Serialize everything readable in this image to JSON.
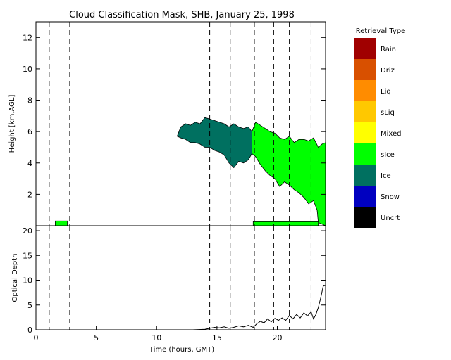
{
  "chart_data": [
    {
      "type": "heatmap",
      "title": "Cloud Classification Mask, SHB, January 25, 1998",
      "ylabel": "Height [km,AGL]",
      "xlim": [
        0,
        24
      ],
      "ylim": [
        0,
        13
      ],
      "yticks": [
        2,
        4,
        6,
        8,
        10,
        12
      ],
      "event_lines": [
        1.1,
        2.8,
        14.4,
        16.1,
        18.1,
        19.7,
        21.0,
        22.8
      ],
      "legend": {
        "title": "Retrieval Type",
        "placement": "right",
        "entries": [
          {
            "label": "Rain",
            "color": "#a00000"
          },
          {
            "label": "Driz",
            "color": "#d85000"
          },
          {
            "label": "Liq",
            "color": "#ff8c00"
          },
          {
            "label": "sLiq",
            "color": "#ffc800"
          },
          {
            "label": "Mixed",
            "color": "#ffff00"
          },
          {
            "label": "sIce",
            "color": "#00ff00"
          },
          {
            "label": "Ice",
            "color": "#007060"
          },
          {
            "label": "Snow",
            "color": "#0000c0"
          },
          {
            "label": "Uncrt",
            "color": "#000000"
          }
        ]
      },
      "layers": [
        {
          "class": "Ice",
          "color": "#007060",
          "top": [
            [
              11.7,
              5.7
            ],
            [
              12.0,
              6.3
            ],
            [
              12.4,
              6.5
            ],
            [
              12.8,
              6.4
            ],
            [
              13.2,
              6.6
            ],
            [
              13.6,
              6.5
            ],
            [
              14.0,
              6.9
            ],
            [
              14.4,
              6.8
            ],
            [
              14.8,
              6.7
            ],
            [
              15.2,
              6.6
            ],
            [
              15.6,
              6.5
            ],
            [
              16.0,
              6.3
            ],
            [
              16.4,
              6.5
            ],
            [
              16.8,
              6.3
            ],
            [
              17.2,
              6.2
            ],
            [
              17.6,
              6.3
            ],
            [
              17.9,
              6.0
            ]
          ],
          "bottom": [
            [
              17.9,
              4.6
            ],
            [
              17.6,
              4.2
            ],
            [
              17.2,
              4.0
            ],
            [
              16.8,
              4.1
            ],
            [
              16.4,
              3.7
            ],
            [
              16.0,
              4.0
            ],
            [
              15.6,
              4.5
            ],
            [
              15.2,
              4.7
            ],
            [
              14.8,
              4.8
            ],
            [
              14.4,
              5.0
            ],
            [
              14.0,
              5.0
            ],
            [
              13.6,
              5.2
            ],
            [
              13.2,
              5.3
            ],
            [
              12.8,
              5.3
            ],
            [
              12.4,
              5.5
            ],
            [
              12.0,
              5.6
            ],
            [
              11.7,
              5.7
            ]
          ]
        },
        {
          "class": "sIce",
          "color": "#00ff00",
          "top": [
            [
              17.9,
              6.0
            ],
            [
              18.2,
              6.6
            ],
            [
              18.6,
              6.4
            ],
            [
              19.0,
              6.2
            ],
            [
              19.4,
              6.0
            ],
            [
              19.8,
              5.9
            ],
            [
              20.2,
              5.6
            ],
            [
              20.6,
              5.5
            ],
            [
              21.0,
              5.7
            ],
            [
              21.4,
              5.3
            ],
            [
              21.8,
              5.5
            ],
            [
              22.2,
              5.5
            ],
            [
              22.6,
              5.4
            ],
            [
              23.0,
              5.6
            ],
            [
              23.4,
              5.0
            ],
            [
              23.7,
              5.2
            ],
            [
              24.0,
              5.3
            ]
          ],
          "bottom": [
            [
              24.0,
              0.0
            ],
            [
              23.4,
              0.2
            ],
            [
              23.3,
              1.0
            ],
            [
              23.0,
              1.6
            ],
            [
              22.6,
              1.4
            ],
            [
              22.2,
              1.8
            ],
            [
              21.8,
              2.1
            ],
            [
              21.4,
              2.3
            ],
            [
              21.0,
              2.6
            ],
            [
              20.6,
              2.8
            ],
            [
              20.2,
              2.5
            ],
            [
              19.8,
              3.0
            ],
            [
              19.4,
              3.2
            ],
            [
              19.0,
              3.5
            ],
            [
              18.6,
              3.9
            ],
            [
              18.2,
              4.4
            ],
            [
              17.9,
              4.6
            ]
          ]
        },
        {
          "class": "sIce",
          "color": "#00ff00",
          "top": [
            [
              1.6,
              0.3
            ],
            [
              2.6,
              0.3
            ]
          ],
          "bottom": [
            [
              2.6,
              0.0
            ],
            [
              1.6,
              0.0
            ]
          ]
        },
        {
          "class": "sIce",
          "color": "#00ff00",
          "top": [
            [
              18.0,
              0.25
            ],
            [
              23.4,
              0.25
            ]
          ],
          "bottom": [
            [
              23.4,
              0.0
            ],
            [
              18.0,
              0.0
            ]
          ]
        }
      ]
    },
    {
      "type": "line",
      "ylabel": "Optical Depth",
      "xlabel": "Time (hours, GMT)",
      "xlim": [
        0,
        24
      ],
      "ylim": [
        0,
        21
      ],
      "xticks": [
        0,
        5,
        10,
        15,
        20
      ],
      "yticks": [
        0,
        5,
        10,
        15,
        20
      ],
      "event_lines": [
        1.1,
        2.8,
        14.4,
        16.1,
        18.1,
        19.7,
        21.0,
        22.8
      ],
      "series": [
        {
          "values": [
            [
              0,
              0
            ],
            [
              13.0,
              0
            ],
            [
              14.0,
              0.1
            ],
            [
              14.4,
              0.3
            ],
            [
              14.8,
              0.5
            ],
            [
              15.2,
              0.4
            ],
            [
              15.6,
              0.6
            ],
            [
              16.0,
              0.3
            ],
            [
              16.4,
              0.5
            ],
            [
              16.8,
              0.8
            ],
            [
              17.2,
              0.6
            ],
            [
              17.6,
              0.9
            ],
            [
              18.0,
              0.5
            ],
            [
              18.3,
              1.2
            ],
            [
              18.6,
              1.7
            ],
            [
              18.9,
              1.4
            ],
            [
              19.2,
              2.2
            ],
            [
              19.5,
              1.6
            ],
            [
              19.8,
              2.3
            ],
            [
              20.1,
              1.9
            ],
            [
              20.4,
              2.4
            ],
            [
              20.7,
              1.9
            ],
            [
              21.0,
              2.9
            ],
            [
              21.3,
              2.2
            ],
            [
              21.6,
              3.1
            ],
            [
              21.9,
              2.4
            ],
            [
              22.2,
              3.4
            ],
            [
              22.5,
              2.8
            ],
            [
              22.8,
              3.6
            ],
            [
              23.0,
              2.2
            ],
            [
              23.2,
              3.1
            ],
            [
              23.4,
              4.5
            ],
            [
              23.6,
              6.5
            ],
            [
              23.8,
              8.8
            ],
            [
              24.0,
              9.0
            ]
          ]
        }
      ]
    }
  ]
}
